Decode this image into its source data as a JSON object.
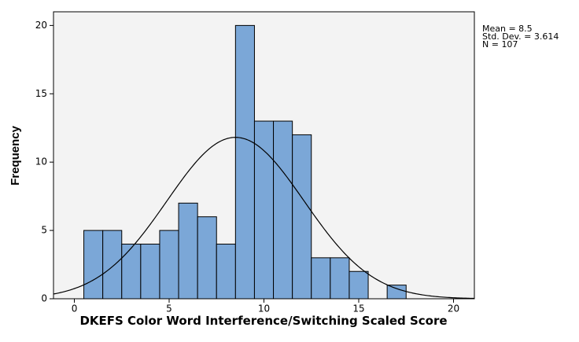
{
  "chart_data": {
    "type": "histogram",
    "xlabel": "DKEFS Color Word Interference/Switching Scaled Score",
    "ylabel": "Frequency",
    "bins": [
      0.5,
      1.5,
      2.5,
      3.5,
      4.5,
      5.5,
      6.5,
      7.5,
      8.5,
      9.5,
      10.5,
      11.5,
      12.5,
      13.5,
      14.5,
      15.5,
      16.5,
      17.5
    ],
    "values": [
      5,
      5,
      4,
      4,
      5,
      7,
      6,
      4,
      20,
      13,
      13,
      12,
      3,
      3,
      2,
      0,
      1
    ],
    "color": "#7ba7d7",
    "xlim": [
      -1.1,
      21.1
    ],
    "ylim": [
      0,
      21
    ],
    "xticks": [
      0,
      5,
      10,
      15,
      20
    ],
    "yticks": [
      0,
      5,
      10,
      15,
      20
    ],
    "stats": [
      {
        "value": 8.5,
        "label": "Mean = 8.5"
      },
      {
        "value": 3.614,
        "label": "Std. Dev. = 3.614"
      },
      {
        "value": 107,
        "label": "N = 107"
      }
    ]
  }
}
